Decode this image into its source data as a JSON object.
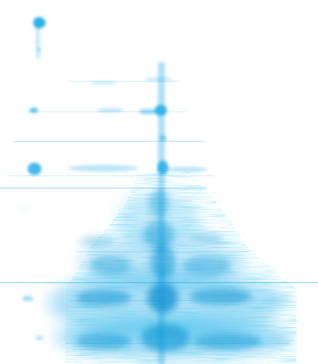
{
  "image": {
    "description_kind": "abstract blue spectral texture on white",
    "colors": {
      "background": "#ffffff",
      "ink": "#18a9e6",
      "ink_light": "#7fd0f2",
      "ink_dark": "#0b8fd0"
    }
  }
}
